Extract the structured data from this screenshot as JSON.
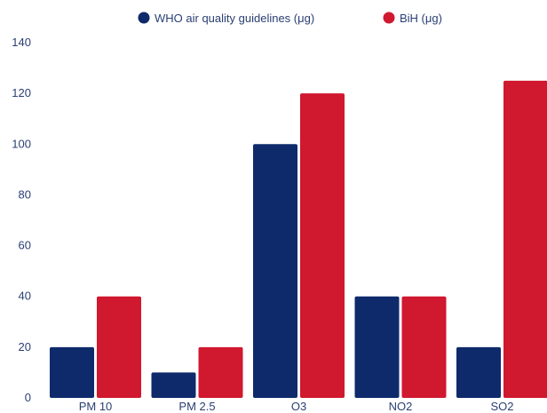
{
  "chart_data": {
    "type": "bar",
    "categories": [
      "PM 10",
      "PM 2.5",
      "O3",
      "NO2",
      "SO2"
    ],
    "series": [
      {
        "name": "WHO air quality guidelines (μg)",
        "color": "#0e2a6b",
        "values": [
          20,
          10,
          100,
          40,
          20
        ]
      },
      {
        "name": "BiH (μg)",
        "color": "#d0182f",
        "values": [
          40,
          20,
          120,
          40,
          125
        ]
      }
    ],
    "ylim": [
      0,
      140
    ],
    "yticks": [
      "0",
      "20",
      "40",
      "60",
      "80",
      "100",
      "120",
      "140"
    ],
    "grid": false,
    "legend": "top-center"
  }
}
